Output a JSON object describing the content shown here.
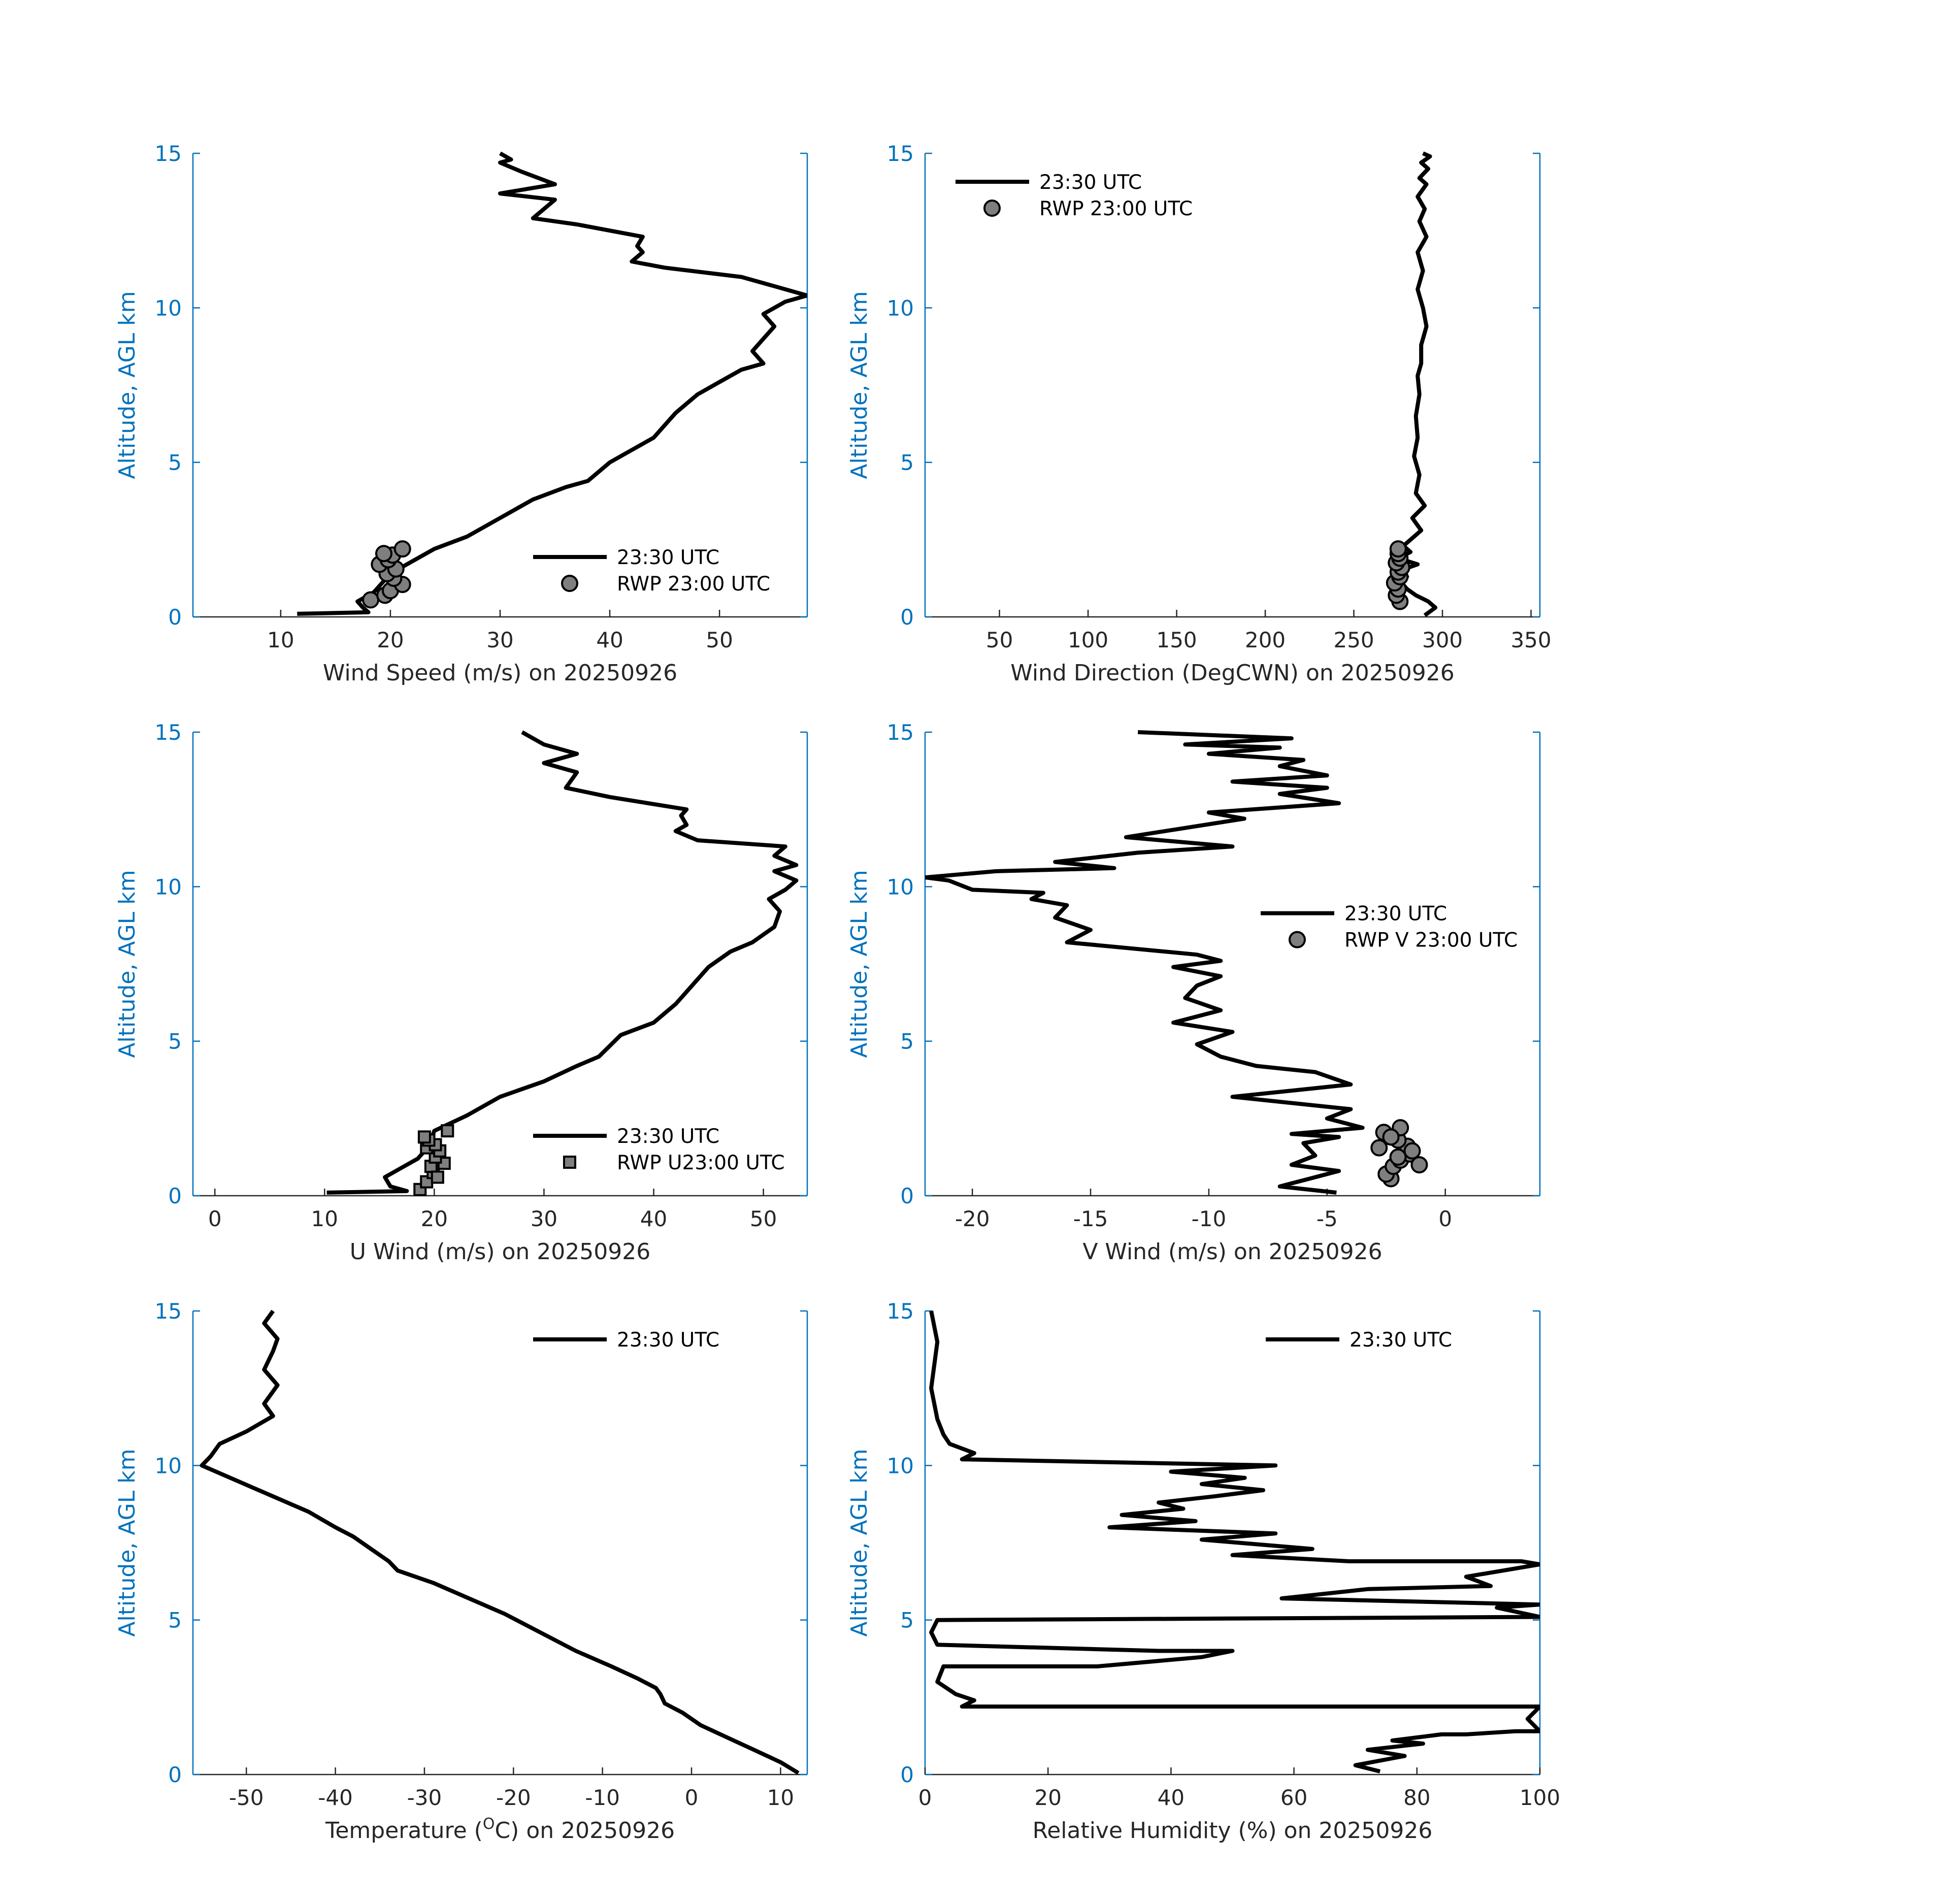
{
  "colors": {
    "axis_y": "#0072bd",
    "axis_x": "#262626",
    "line": "#000000",
    "marker_fill": "#7f7f7f"
  },
  "chart_data": [
    {
      "id": "ws",
      "type": "line",
      "xlabel_prefix": "Wind Speed (m/s) on 20250926",
      "xlabel_sup": "",
      "xlabel_suffix": "",
      "ylabel": "Altitude, AGL km",
      "xlim": [
        2,
        58
      ],
      "ylim": [
        0,
        15
      ],
      "xticks": [
        10,
        20,
        30,
        40,
        50
      ],
      "xtick_labels": [
        "10",
        "20",
        "30",
        "40",
        "50"
      ],
      "yticks": [
        0,
        5,
        10,
        15
      ],
      "ytick_labels": [
        "0",
        "5",
        "10",
        "15"
      ],
      "legend": {
        "position": "bottom-right",
        "entries": [
          {
            "label": "23:30 UTC",
            "kind": "line"
          },
          {
            "label": "RWP 23:00 UTC",
            "kind": "circle"
          }
        ]
      },
      "series": [
        {
          "name": "23:30 UTC",
          "kind": "line",
          "x": [
            11.5,
            18,
            17.5,
            17,
            18.5,
            19.5,
            21,
            24,
            27,
            30,
            33,
            36,
            38,
            40,
            42,
            44,
            45,
            46,
            48,
            50,
            52,
            54,
            53,
            54,
            55,
            54,
            56,
            58,
            55,
            52,
            45,
            42,
            43,
            42.5,
            43,
            37,
            33,
            35,
            30,
            35,
            32,
            30,
            31,
            30
          ],
          "y": [
            0.1,
            0.15,
            0.3,
            0.5,
            0.8,
            1.2,
            1.6,
            2.2,
            2.6,
            3.2,
            3.8,
            4.2,
            4.4,
            5.0,
            5.4,
            5.8,
            6.2,
            6.6,
            7.2,
            7.6,
            8.0,
            8.2,
            8.6,
            9.0,
            9.4,
            9.8,
            10.2,
            10.4,
            10.7,
            11.0,
            11.3,
            11.5,
            11.8,
            12.0,
            12.3,
            12.7,
            12.9,
            13.5,
            13.7,
            14.0,
            14.4,
            14.7,
            14.8,
            15.0
          ]
        },
        {
          "name": "RWP 23:00 UTC",
          "kind": "circle",
          "x": [
            18.2,
            19.5,
            20.0,
            21.1,
            20.3,
            19.7,
            20.5,
            19.0,
            19.8,
            20.2,
            21.1,
            19.4
          ],
          "y": [
            0.55,
            0.7,
            0.85,
            1.05,
            1.25,
            1.4,
            1.55,
            1.7,
            1.85,
            2.0,
            2.2,
            2.05
          ]
        }
      ]
    },
    {
      "id": "wd",
      "type": "line",
      "xlabel_prefix": "Wind Direction (DegCWN) on 20250926",
      "xlabel_sup": "",
      "xlabel_suffix": "",
      "ylabel": "Altitude, AGL km",
      "xlim": [
        8,
        355
      ],
      "ylim": [
        0,
        15
      ],
      "xticks": [
        50,
        100,
        150,
        200,
        250,
        300,
        350
      ],
      "xtick_labels": [
        "50",
        "100",
        "150",
        "200",
        "250",
        "300",
        "350"
      ],
      "yticks": [
        0,
        5,
        10,
        15
      ],
      "ytick_labels": [
        "0",
        "5",
        "10",
        "15"
      ],
      "legend": {
        "position": "top-left",
        "entries": [
          {
            "label": "23:30 UTC",
            "kind": "line"
          },
          {
            "label": "RWP 23:00 UTC",
            "kind": "circle"
          }
        ]
      },
      "series": [
        {
          "name": "23:30 UTC",
          "kind": "line",
          "x": [
            290,
            296,
            292,
            285,
            280,
            277,
            280,
            276,
            286,
            275,
            282,
            278,
            288,
            283,
            290,
            285,
            287,
            284,
            286,
            285,
            287,
            286,
            288,
            288,
            291,
            289,
            286,
            289,
            286,
            291,
            287,
            290,
            286,
            291,
            287,
            292,
            288,
            293,
            289
          ],
          "y": [
            0.05,
            0.3,
            0.5,
            0.7,
            0.9,
            1.1,
            1.3,
            1.5,
            1.7,
            1.9,
            2.1,
            2.3,
            2.8,
            3.2,
            3.6,
            4.0,
            4.6,
            5.2,
            5.8,
            6.5,
            7.2,
            7.8,
            8.2,
            8.8,
            9.4,
            10.0,
            10.6,
            11.2,
            11.8,
            12.3,
            12.8,
            13.2,
            13.6,
            14.0,
            14.2,
            14.5,
            14.7,
            14.9,
            15.0
          ]
        },
        {
          "name": "RWP 23:00 UTC",
          "kind": "circle",
          "x": [
            276,
            274,
            275,
            273,
            276,
            275,
            277,
            274,
            276,
            275,
            275
          ],
          "y": [
            0.5,
            0.7,
            0.9,
            1.1,
            1.3,
            1.45,
            1.6,
            1.75,
            1.9,
            2.05,
            2.2
          ]
        }
      ]
    },
    {
      "id": "u",
      "type": "line",
      "xlabel_prefix": "U Wind (m/s) on 20250926",
      "xlabel_sup": "",
      "xlabel_suffix": "",
      "ylabel": "Altitude, AGL km",
      "xlim": [
        -2,
        54
      ],
      "ylim": [
        0,
        15
      ],
      "xticks": [
        0,
        10,
        20,
        30,
        40,
        50
      ],
      "xtick_labels": [
        "0",
        "10",
        "20",
        "30",
        "40",
        "50"
      ],
      "yticks": [
        0,
        5,
        10,
        15
      ],
      "ytick_labels": [
        "0",
        "5",
        "10",
        "15"
      ],
      "legend": {
        "position": "bottom-right",
        "entries": [
          {
            "label": "23:30 UTC",
            "kind": "line"
          },
          {
            "label": "RWP U23:00 UTC",
            "kind": "square"
          }
        ]
      },
      "series": [
        {
          "name": "23:30 UTC",
          "kind": "line",
          "x": [
            10.2,
            17.5,
            16,
            15.5,
            17,
            18.5,
            19.5,
            20,
            23,
            26,
            30,
            33,
            35,
            37,
            40,
            42,
            43,
            45,
            47,
            49,
            51,
            51.5,
            50.5,
            52,
            53,
            51,
            53,
            51,
            52,
            44,
            42,
            43,
            42.5,
            43,
            36,
            32,
            33,
            30,
            33,
            30,
            28
          ],
          "y": [
            0.1,
            0.15,
            0.3,
            0.6,
            0.9,
            1.2,
            1.6,
            2.1,
            2.6,
            3.2,
            3.7,
            4.2,
            4.5,
            5.2,
            5.6,
            6.2,
            6.6,
            7.4,
            7.9,
            8.2,
            8.7,
            9.2,
            9.6,
            9.9,
            10.2,
            10.5,
            10.7,
            11.0,
            11.3,
            11.5,
            11.8,
            12.0,
            12.3,
            12.5,
            12.9,
            13.2,
            13.7,
            14.0,
            14.3,
            14.6,
            15.0
          ]
        },
        {
          "name": "RWP U23:00 UTC",
          "kind": "square",
          "x": [
            18.7,
            19.3,
            19.9,
            20.9,
            19.7,
            20.1,
            20.5,
            19.3,
            20.1,
            19.5,
            21.2,
            19.1,
            20.3
          ],
          "y": [
            0.2,
            0.45,
            0.75,
            1.05,
            0.95,
            1.25,
            1.45,
            1.55,
            1.65,
            1.8,
            2.1,
            1.9,
            0.6
          ]
        }
      ]
    },
    {
      "id": "v",
      "type": "line",
      "xlabel_prefix": "V Wind (m/s) on 20250926",
      "xlabel_sup": "",
      "xlabel_suffix": "",
      "ylabel": "Altitude, AGL km",
      "xlim": [
        -22,
        4
      ],
      "ylim": [
        0,
        15
      ],
      "xticks": [
        -20,
        -15,
        -10,
        -5,
        0
      ],
      "xtick_labels": [
        "-20",
        "-15",
        "-10",
        "-5",
        "0"
      ],
      "yticks": [
        0,
        5,
        10,
        15
      ],
      "ytick_labels": [
        "0",
        "5",
        "10",
        "15"
      ],
      "legend": {
        "position": "center-right",
        "entries": [
          {
            "label": "23:30 UTC",
            "kind": "line"
          },
          {
            "label": "RWP V 23:00 UTC",
            "kind": "circle"
          }
        ]
      },
      "series": [
        {
          "name": "23:30 UTC",
          "kind": "line",
          "x": [
            -4.6,
            -7.0,
            -6.0,
            -4.5,
            -6.5,
            -5.5,
            -6.0,
            -4.5,
            -6.5,
            -3.5,
            -5.0,
            -4.0,
            -9.0,
            -4.0,
            -5.5,
            -8.0,
            -9.5,
            -10.5,
            -9.0,
            -11.5,
            -9.5,
            -11.0,
            -10.5,
            -9.5,
            -11.5,
            -9.5,
            -10.5,
            -16.0,
            -15.0,
            -16.5,
            -16.0,
            -17.5,
            -17.0,
            -20.0,
            -21.0,
            -22.0,
            -19.0,
            -14.0,
            -16.5,
            -13.0,
            -9.0,
            -13.5,
            -11.0,
            -8.5,
            -10.0,
            -4.5,
            -7.0,
            -5.0,
            -9.0,
            -5.0,
            -7.0,
            -6.0,
            -10.0,
            -7.0,
            -11.0,
            -6.5,
            -13.0
          ],
          "y": [
            0.1,
            0.3,
            0.5,
            0.8,
            1.0,
            1.3,
            1.7,
            1.9,
            2.0,
            2.2,
            2.5,
            2.8,
            3.2,
            3.6,
            4.0,
            4.2,
            4.5,
            4.9,
            5.3,
            5.6,
            6.0,
            6.4,
            6.8,
            7.1,
            7.4,
            7.6,
            7.8,
            8.2,
            8.6,
            9.0,
            9.4,
            9.6,
            9.8,
            9.9,
            10.2,
            10.3,
            10.5,
            10.6,
            10.8,
            11.1,
            11.3,
            11.6,
            11.9,
            12.2,
            12.4,
            12.7,
            13.0,
            13.2,
            13.4,
            13.6,
            13.9,
            14.1,
            14.3,
            14.5,
            14.6,
            14.8,
            15.0
          ]
        },
        {
          "name": "RWP V 23:00 UTC",
          "kind": "circle",
          "x": [
            -2.3,
            -2.5,
            -2.2,
            -1.9,
            -1.5,
            -1.1,
            -1.6,
            -2.8,
            -2.0,
            -2.6,
            -1.9,
            -2.3,
            -1.4,
            -2.0
          ],
          "y": [
            0.55,
            0.7,
            0.95,
            1.15,
            1.35,
            1.0,
            1.6,
            1.55,
            1.8,
            2.05,
            2.2,
            1.9,
            1.45,
            1.25
          ]
        }
      ]
    },
    {
      "id": "t",
      "type": "line",
      "xlabel_prefix": "Temperature (",
      "xlabel_sup": "O",
      "xlabel_suffix": "C) on 20250926",
      "ylabel": "Altitude, AGL km",
      "xlim": [
        -56,
        13
      ],
      "ylim": [
        0,
        15
      ],
      "xticks": [
        -50,
        -40,
        -30,
        -20,
        -10,
        0,
        10
      ],
      "xtick_labels": [
        "-50",
        "-40",
        "-30",
        "-20",
        "-10",
        "0",
        "10"
      ],
      "yticks": [
        0,
        5,
        10,
        15
      ],
      "ytick_labels": [
        "0",
        "5",
        "10",
        "15"
      ],
      "legend": {
        "position": "top-right",
        "entries": [
          {
            "label": "23:30 UTC",
            "kind": "line"
          }
        ]
      },
      "series": [
        {
          "name": "23:30 UTC",
          "kind": "line",
          "x": [
            12,
            10,
            7,
            4,
            1,
            -1,
            -3,
            -3.5,
            -4,
            -6,
            -9,
            -13,
            -17,
            -21,
            -25,
            -29,
            -33,
            -34,
            -36,
            -38,
            -40,
            -43,
            -47,
            -51,
            -55,
            -54,
            -53,
            -50,
            -47,
            -48,
            -46.5,
            -48,
            -47,
            -46.5,
            -48,
            -47
          ],
          "y": [
            0.05,
            0.4,
            0.8,
            1.2,
            1.6,
            2.0,
            2.3,
            2.6,
            2.8,
            3.1,
            3.5,
            4.0,
            4.6,
            5.2,
            5.7,
            6.2,
            6.6,
            6.9,
            7.3,
            7.7,
            8.0,
            8.5,
            9.0,
            9.5,
            10.0,
            10.3,
            10.7,
            11.1,
            11.6,
            12.0,
            12.6,
            13.1,
            13.7,
            14.1,
            14.6,
            15.0
          ]
        }
      ]
    },
    {
      "id": "rh",
      "type": "line",
      "xlabel_prefix": "Relative Humidity (%) on 20250926",
      "xlabel_sup": "",
      "xlabel_suffix": "",
      "ylabel": "Altitude, AGL km",
      "xlim": [
        0,
        100
      ],
      "ylim": [
        0,
        15
      ],
      "xticks": [
        0,
        20,
        40,
        60,
        80,
        100
      ],
      "xtick_labels": [
        "0",
        "20",
        "40",
        "60",
        "80",
        "100"
      ],
      "yticks": [
        0,
        5,
        10,
        15
      ],
      "ytick_labels": [
        "0",
        "5",
        "10",
        "15"
      ],
      "legend": {
        "position": "top-right",
        "entries": [
          {
            "label": "23:30 UTC",
            "kind": "line"
          }
        ]
      },
      "series": [
        {
          "name": "23:30 UTC",
          "kind": "line",
          "x": [
            74,
            70,
            78,
            72,
            81,
            76,
            84,
            88,
            96,
            100,
            98,
            100,
            6,
            8,
            5,
            2,
            3,
            28,
            45,
            50,
            38,
            2,
            1,
            2,
            100,
            93,
            100,
            58,
            72,
            92,
            88,
            100,
            97,
            69,
            50,
            63,
            45,
            57,
            30,
            44,
            32,
            42,
            38,
            47,
            55,
            45,
            52,
            40,
            57,
            6,
            8,
            4,
            3,
            2,
            1,
            2,
            1
          ],
          "y": [
            0.1,
            0.3,
            0.6,
            0.8,
            1.0,
            1.1,
            1.3,
            1.3,
            1.4,
            1.4,
            1.8,
            2.2,
            2.2,
            2.4,
            2.6,
            3.0,
            3.5,
            3.5,
            3.8,
            4.0,
            4.0,
            4.2,
            4.6,
            5.0,
            5.1,
            5.4,
            5.5,
            5.7,
            6.0,
            6.1,
            6.4,
            6.8,
            6.9,
            6.9,
            7.1,
            7.3,
            7.6,
            7.8,
            8.0,
            8.2,
            8.4,
            8.6,
            8.8,
            9.0,
            9.2,
            9.4,
            9.6,
            9.8,
            10.0,
            10.2,
            10.4,
            10.7,
            11.0,
            11.5,
            12.5,
            14.0,
            15.0
          ]
        }
      ]
    }
  ]
}
